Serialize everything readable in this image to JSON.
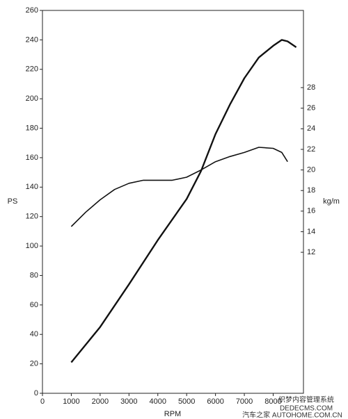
{
  "chart_data": {
    "type": "line",
    "xlabel": "RPM",
    "ylabel": "PS",
    "y2label": "kg/m",
    "xlim": [
      0,
      9050
    ],
    "xticks": [
      0,
      1000,
      2000,
      3000,
      4000,
      5000,
      6000,
      7000,
      8000
    ],
    "ylim": [
      0,
      260
    ],
    "yticks": [
      0,
      20,
      40,
      60,
      80,
      100,
      120,
      140,
      160,
      180,
      200,
      220,
      240,
      260
    ],
    "y2lim": [
      -1.7,
      35.5
    ],
    "y2ticks": [
      12,
      14,
      16,
      18,
      20,
      22,
      24,
      26,
      28
    ],
    "series": [
      {
        "color": "#111111",
        "x": [
          1000,
          2000,
          3000,
          4000,
          5000,
          5500,
          6000,
          6500,
          7000,
          7500,
          8000,
          8300,
          8500,
          8800
        ],
        "values": [
          21,
          45,
          74,
          104,
          132,
          151,
          176,
          196,
          214,
          228,
          236,
          240,
          239,
          235
        ]
      },
      {
        "color": "#111111",
        "axis": "y2",
        "x": [
          1000,
          1500,
          2000,
          2500,
          3000,
          3500,
          4000,
          4500,
          5000,
          5500,
          6000,
          6500,
          7000,
          7500,
          8000,
          8300,
          8500
        ],
        "values": [
          14.5,
          15.9,
          17.1,
          18.1,
          18.7,
          19.0,
          19.0,
          19.0,
          19.3,
          20.0,
          20.8,
          21.3,
          21.7,
          22.2,
          22.1,
          21.7,
          20.8
        ]
      }
    ],
    "annotations": [
      "织梦内容管理系统",
      "DEDECMS.COM",
      "汽车之家 AUTOHOME.COM.CN"
    ]
  }
}
